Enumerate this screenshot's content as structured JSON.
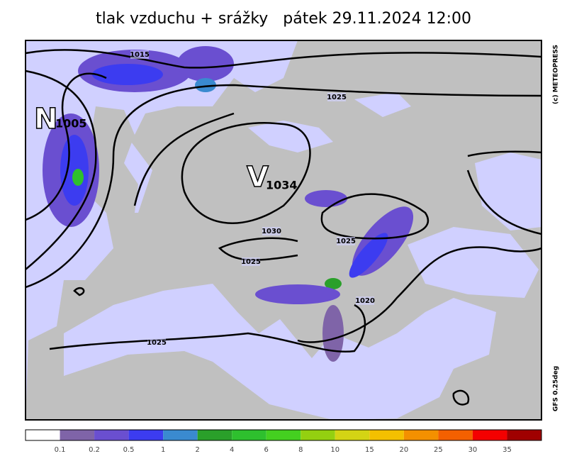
{
  "title": "tlak vzduchu + srážky   pátek 29.11.2024 12:00",
  "credit": "(c) METEOPRESS",
  "model": "GFS 0.25deg",
  "pressure_centers": [
    {
      "letter": "N",
      "value": "1005"
    },
    {
      "letter": "V",
      "value": "1034"
    }
  ],
  "isobar_labels": [
    "1015",
    "1025",
    "1030",
    "1025",
    "1025",
    "1020",
    "1025"
  ],
  "legend": {
    "colors": [
      "#ffffff",
      "#7f64a8",
      "#6a4fd0",
      "#3c3cf0",
      "#3a8ad0",
      "#2aa02a",
      "#2ec02e",
      "#44d020",
      "#94d010",
      "#d4d414",
      "#f4c000",
      "#f49000",
      "#f46000",
      "#f40000",
      "#a00000"
    ],
    "labels": [
      "0.1",
      "0.2",
      "0.5",
      "1",
      "2",
      "4",
      "6",
      "8",
      "10",
      "15",
      "20",
      "25",
      "30",
      "35"
    ]
  }
}
